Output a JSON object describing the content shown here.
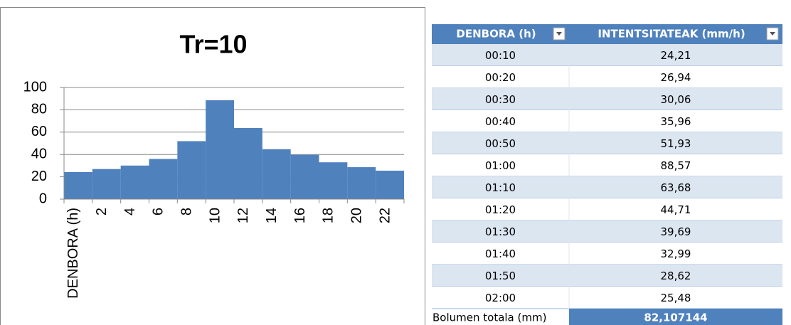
{
  "chart_data": {
    "type": "bar",
    "title": "Tr=10",
    "categories": [
      "DENBORA (h)",
      "2",
      "4",
      "6",
      "8",
      "10",
      "12",
      "14",
      "16",
      "18",
      "20",
      "22"
    ],
    "values": [
      24.21,
      26.94,
      30.06,
      35.96,
      51.93,
      88.57,
      63.68,
      44.71,
      39.69,
      32.99,
      28.62,
      25.48
    ],
    "color": "#4f81bd",
    "ylim": [
      0,
      100
    ],
    "yticks": [
      0,
      20,
      40,
      60,
      80,
      100
    ],
    "grid": true
  },
  "table": {
    "header": [
      "DENBORA (h)",
      "INTENTSITATEAK (mm/h)"
    ],
    "rows": [
      [
        "00:10",
        "24,21"
      ],
      [
        "00:20",
        "26,94"
      ],
      [
        "00:30",
        "30,06"
      ],
      [
        "00:40",
        "35,96"
      ],
      [
        "00:50",
        "51,93"
      ],
      [
        "01:00",
        "88,57"
      ],
      [
        "01:10",
        "63,68"
      ],
      [
        "01:20",
        "44,71"
      ],
      [
        "01:30",
        "39,69"
      ],
      [
        "01:40",
        "32,99"
      ],
      [
        "01:50",
        "28,62"
      ],
      [
        "02:00",
        "25,48"
      ]
    ],
    "footer": [
      "Bolumen totala (mm)",
      "82,107144"
    ]
  }
}
